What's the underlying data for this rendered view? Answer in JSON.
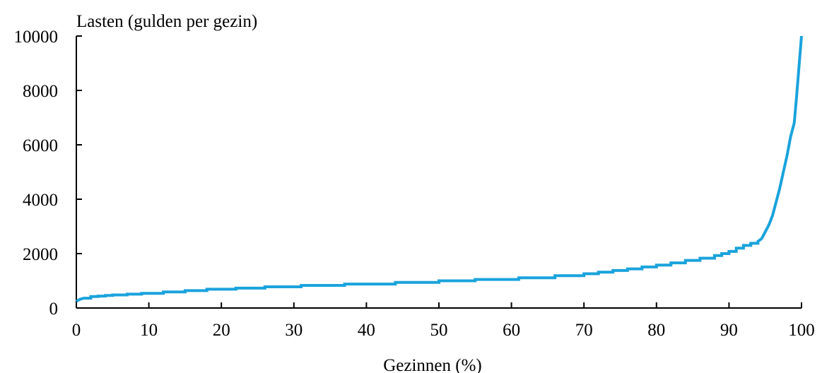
{
  "chart_data": {
    "type": "line",
    "title": "",
    "ylabel": "Lasten (gulden per gezin)",
    "xlabel": "Gezinnen (%)",
    "xlim": [
      0,
      100
    ],
    "ylim": [
      0,
      10000
    ],
    "x_ticks": [
      0,
      10,
      20,
      30,
      40,
      50,
      60,
      70,
      80,
      90,
      100
    ],
    "y_ticks": [
      0,
      2000,
      4000,
      6000,
      8000,
      10000
    ],
    "x_tick_labels": [
      "0",
      "10",
      "20",
      "30",
      "40",
      "50",
      "60",
      "70",
      "80",
      "90",
      "100"
    ],
    "y_tick_labels": [
      "0",
      "2000",
      "4000",
      "6000",
      "8000",
      "10000"
    ],
    "grid": false,
    "line_color": "#1aa3dc",
    "series": [
      {
        "x": [
          0,
          0.5,
          1,
          2,
          3,
          4,
          5,
          7,
          9,
          12,
          15,
          18,
          22,
          26,
          31,
          37,
          44,
          50,
          55,
          61,
          66,
          70,
          72,
          74,
          76,
          78,
          80,
          82,
          84,
          86,
          88,
          89,
          90,
          91,
          92,
          93,
          94,
          94.5,
          95,
          95.5,
          96,
          96.5,
          97,
          97.5,
          98,
          98.5,
          99,
          99.3,
          99.6,
          100
        ],
        "y": [
          250,
          320,
          360,
          420,
          440,
          460,
          480,
          510,
          540,
          590,
          640,
          690,
          730,
          780,
          830,
          880,
          940,
          1000,
          1050,
          1110,
          1190,
          1260,
          1320,
          1380,
          1440,
          1510,
          1580,
          1660,
          1750,
          1830,
          1930,
          2000,
          2080,
          2200,
          2300,
          2380,
          2450,
          2550,
          2800,
          3050,
          3400,
          3900,
          4400,
          5000,
          5600,
          6300,
          6800,
          7700,
          8700,
          10000
        ]
      }
    ]
  }
}
